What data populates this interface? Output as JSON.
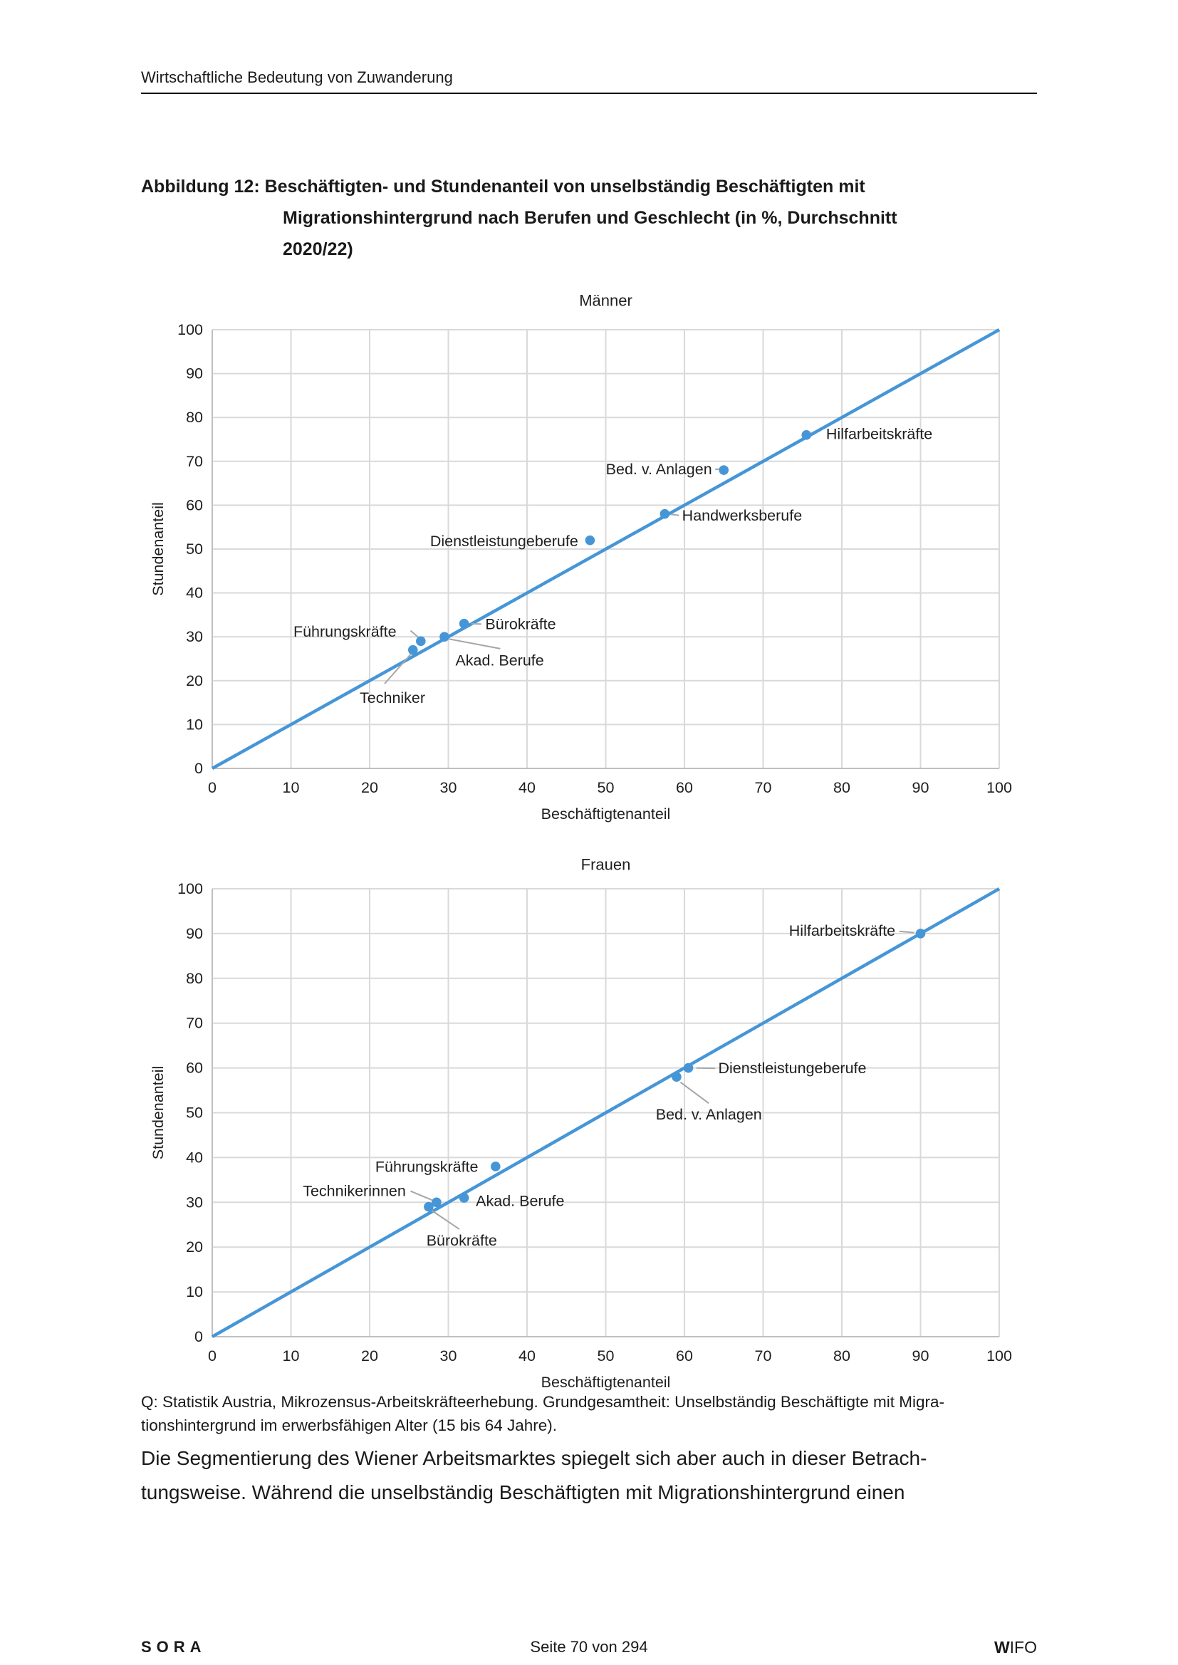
{
  "page": {
    "header": "Wirtschaftliche Bedeutung von Zuwanderung",
    "figure_title_lines": [
      "Abbildung 12: Beschäftigten- und Stundenanteil von unselbständig Beschäftigten mit",
      "Migrationshintergrund nach Berufen und Geschlecht (in %, Durchschnitt",
      "2020/22)"
    ],
    "source_lines": [
      "Q: Statistik Austria, Mikrozensus-Arbeitskräfteerhebung. Grundgesamtheit: Unselbständig Beschäftigte mit Migra-",
      "tionshintergrund im erwerbsfähigen Alter (15 bis 64 Jahre)."
    ],
    "body_lines": [
      "Die Segmentierung des Wiener Arbeitsmarktes spiegelt sich aber auch in dieser Betrach-",
      "tungsweise. Während die unselbständig Beschäftigten mit Migrationshintergrund einen"
    ],
    "footer": {
      "left": "SORA",
      "center": "Seite 70 von 294",
      "right_bold": "W",
      "right_rest": "IFO"
    }
  },
  "colors": {
    "accent_blue": "#4696D7",
    "gridline": "#D9D9D9",
    "axis": "#BFBFBF",
    "callout": "#A6A6A6",
    "chart_text": "#1f1f1f"
  },
  "chart_data": [
    {
      "type": "scatter",
      "title": "Männer",
      "xlabel": "Beschäftigtenanteil",
      "ylabel": "Stundenanteil",
      "xlim": [
        0,
        100
      ],
      "ylim": [
        0,
        100
      ],
      "tick_step": 10,
      "grid": true,
      "legend": "none",
      "diagonal_line": {
        "from": [
          0,
          0
        ],
        "to": [
          100,
          100
        ]
      },
      "points": [
        {
          "name": "Hilfarbeitskräfte",
          "x": 75.5,
          "y": 76,
          "label": {
            "x": 78.0,
            "y": 76.2,
            "anchor": "start"
          },
          "callout": null
        },
        {
          "name": "Bed. v. Anlagen",
          "x": 65,
          "y": 68,
          "label": {
            "x": 63.5,
            "y": 68.2,
            "anchor": "end"
          },
          "callout": [
            63.9,
            68.2,
            64.6,
            68.2
          ]
        },
        {
          "name": "Handwerksberufe",
          "x": 57.5,
          "y": 58,
          "label": {
            "x": 59.7,
            "y": 57.6,
            "anchor": "start"
          },
          "callout": [
            58.3,
            57.9,
            59.3,
            57.7
          ]
        },
        {
          "name": "Dienstleistungeberufe",
          "x": 48,
          "y": 52,
          "label": {
            "x": 46.5,
            "y": 51.8,
            "anchor": "end"
          },
          "callout": null
        },
        {
          "name": "Bürokräfte",
          "x": 32,
          "y": 33,
          "label": {
            "x": 34.7,
            "y": 32.9,
            "anchor": "start"
          },
          "callout": [
            32.9,
            33.0,
            34.2,
            32.9
          ]
        },
        {
          "name": "Akad. Berufe",
          "x": 29.5,
          "y": 30,
          "label": {
            "x": 30.9,
            "y": 24.6,
            "anchor": "start"
          },
          "callout": [
            30.1,
            29.5,
            36.6,
            27.3
          ]
        },
        {
          "name": "Führungskräfte",
          "x": 26.5,
          "y": 29,
          "label": {
            "x": 23.4,
            "y": 31.2,
            "anchor": "end"
          },
          "callout": [
            25.2,
            31.4,
            26.3,
            29.7
          ]
        },
        {
          "name": "Techniker",
          "x": 25.5,
          "y": 27,
          "label": {
            "x": 22.9,
            "y": 16.1,
            "anchor": "middle"
          },
          "callout": [
            21.9,
            19.3,
            25.3,
            26.2
          ]
        }
      ]
    },
    {
      "type": "scatter",
      "title": "Frauen",
      "xlabel": "Beschäftigtenanteil",
      "ylabel": "Stundenanteil",
      "xlim": [
        0,
        100
      ],
      "ylim": [
        0,
        100
      ],
      "tick_step": 10,
      "grid": true,
      "legend": "none",
      "diagonal_line": {
        "from": [
          0,
          0
        ],
        "to": [
          100,
          100
        ]
      },
      "points": [
        {
          "name": "Hilfarbeitskräfte",
          "x": 90,
          "y": 90,
          "label": {
            "x": 86.8,
            "y": 90.6,
            "anchor": "end"
          },
          "callout": [
            87.3,
            90.5,
            89.2,
            90.2
          ]
        },
        {
          "name": "Dienstleistungeberufe",
          "x": 60.5,
          "y": 60,
          "label": {
            "x": 64.3,
            "y": 59.9,
            "anchor": "start"
          },
          "callout": [
            61.5,
            60.0,
            63.9,
            59.9
          ]
        },
        {
          "name": "Bed. v. Anlagen",
          "x": 59,
          "y": 58,
          "label": {
            "x": 63.1,
            "y": 49.6,
            "anchor": "middle"
          },
          "callout": [
            59.5,
            56.8,
            63.1,
            52.1
          ]
        },
        {
          "name": "Führungskräfte",
          "x": 36,
          "y": 38,
          "label": {
            "x": 33.8,
            "y": 37.9,
            "anchor": "end"
          },
          "callout": null
        },
        {
          "name": "Akad. Berufe",
          "x": 32,
          "y": 31,
          "label": {
            "x": 33.5,
            "y": 30.3,
            "anchor": "start"
          },
          "callout": null
        },
        {
          "name": "Technikerinnen",
          "x": 28.5,
          "y": 30,
          "label": {
            "x": 24.6,
            "y": 32.5,
            "anchor": "end"
          },
          "callout": [
            25.2,
            32.5,
            28.2,
            30.3
          ]
        },
        {
          "name": "Bürokräfte",
          "x": 27.5,
          "y": 29,
          "label": {
            "x": 31.7,
            "y": 21.5,
            "anchor": "middle"
          },
          "callout": [
            27.7,
            28.4,
            31.4,
            24.0
          ]
        }
      ]
    }
  ]
}
